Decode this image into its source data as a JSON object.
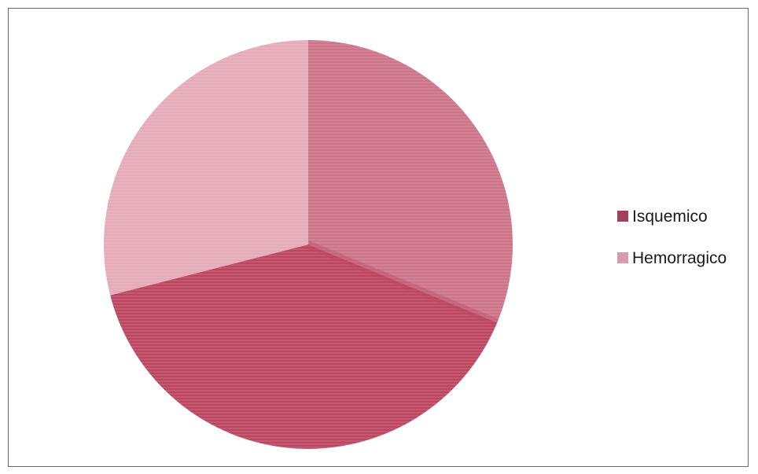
{
  "chart_data": {
    "type": "pie",
    "categories": [
      "Isquemico",
      "Hemorragico"
    ],
    "slices": [
      {
        "label": "Isquemico",
        "value": 71,
        "color": "#b8405e"
      },
      {
        "label": "Hemorragico",
        "value": 29,
        "color": "#e3a6b5"
      }
    ],
    "legend": {
      "position": "right"
    },
    "note": "Isquemico slice appears in two shades (light rose upper-right, deep crimson lower) in the original rendering"
  },
  "colors": {
    "isquemico_light": "#cd7488",
    "isquemico_dark": "#bd4560",
    "hemorragico": "#e6a9b8",
    "legend_isquemico": "#a3405a",
    "legend_hemorragico": "#d99aac"
  }
}
